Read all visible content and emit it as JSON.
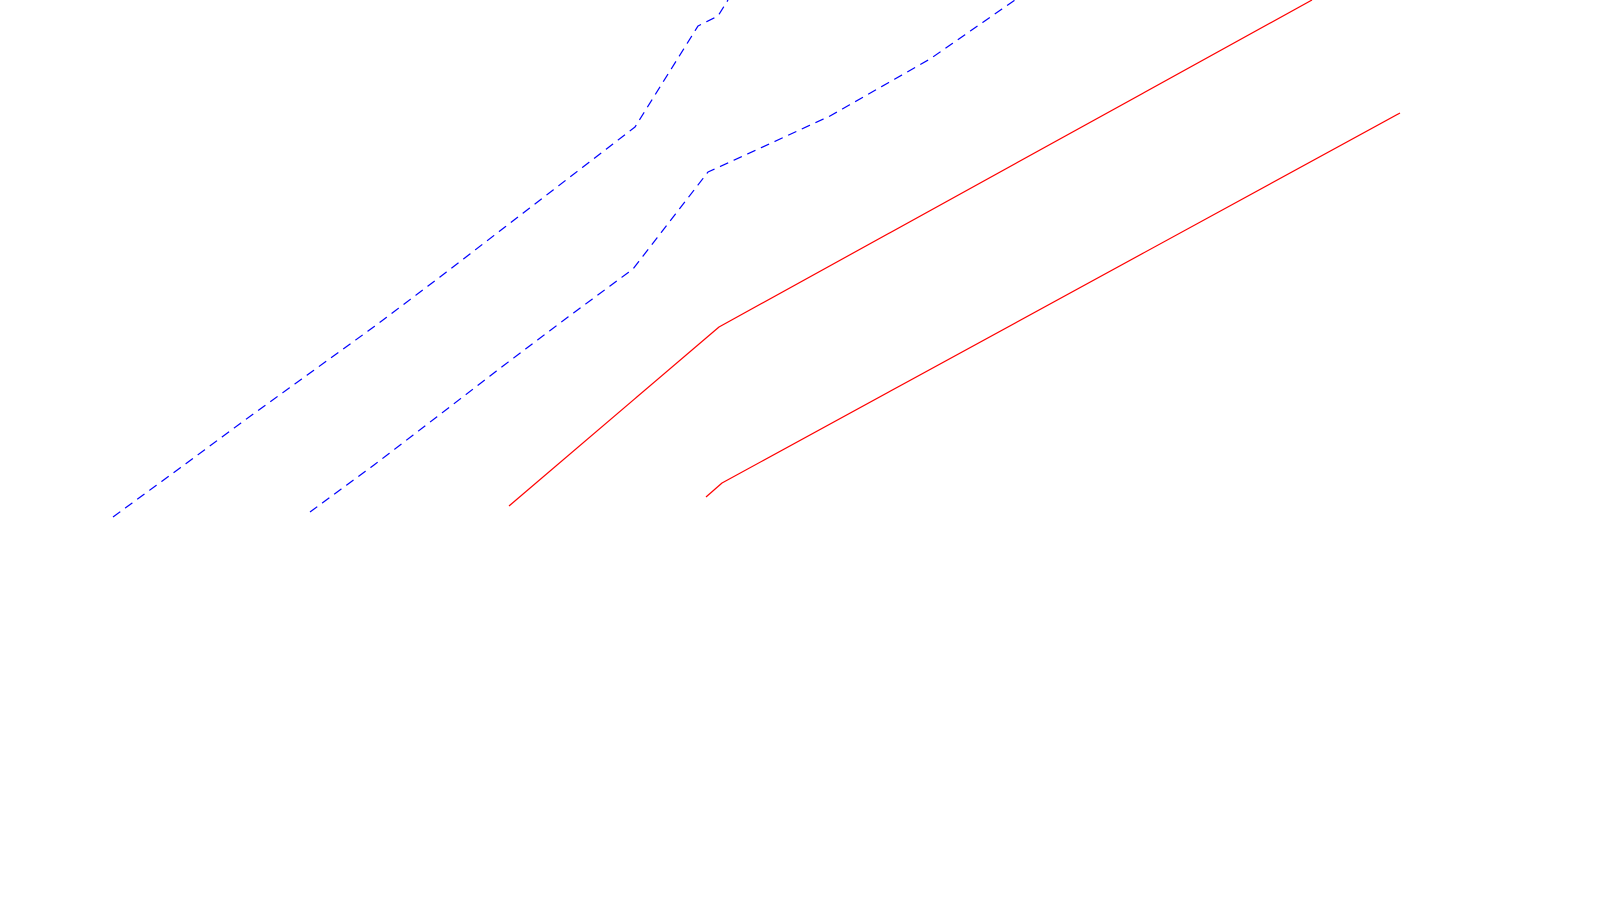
{
  "diagram": {
    "background": "#ffffff",
    "colors": {
      "dashed_lines": "#0000ff",
      "solid_lines": "#ff0000"
    },
    "line_styles": {
      "dashed": "dashed",
      "solid": "solid"
    }
  }
}
